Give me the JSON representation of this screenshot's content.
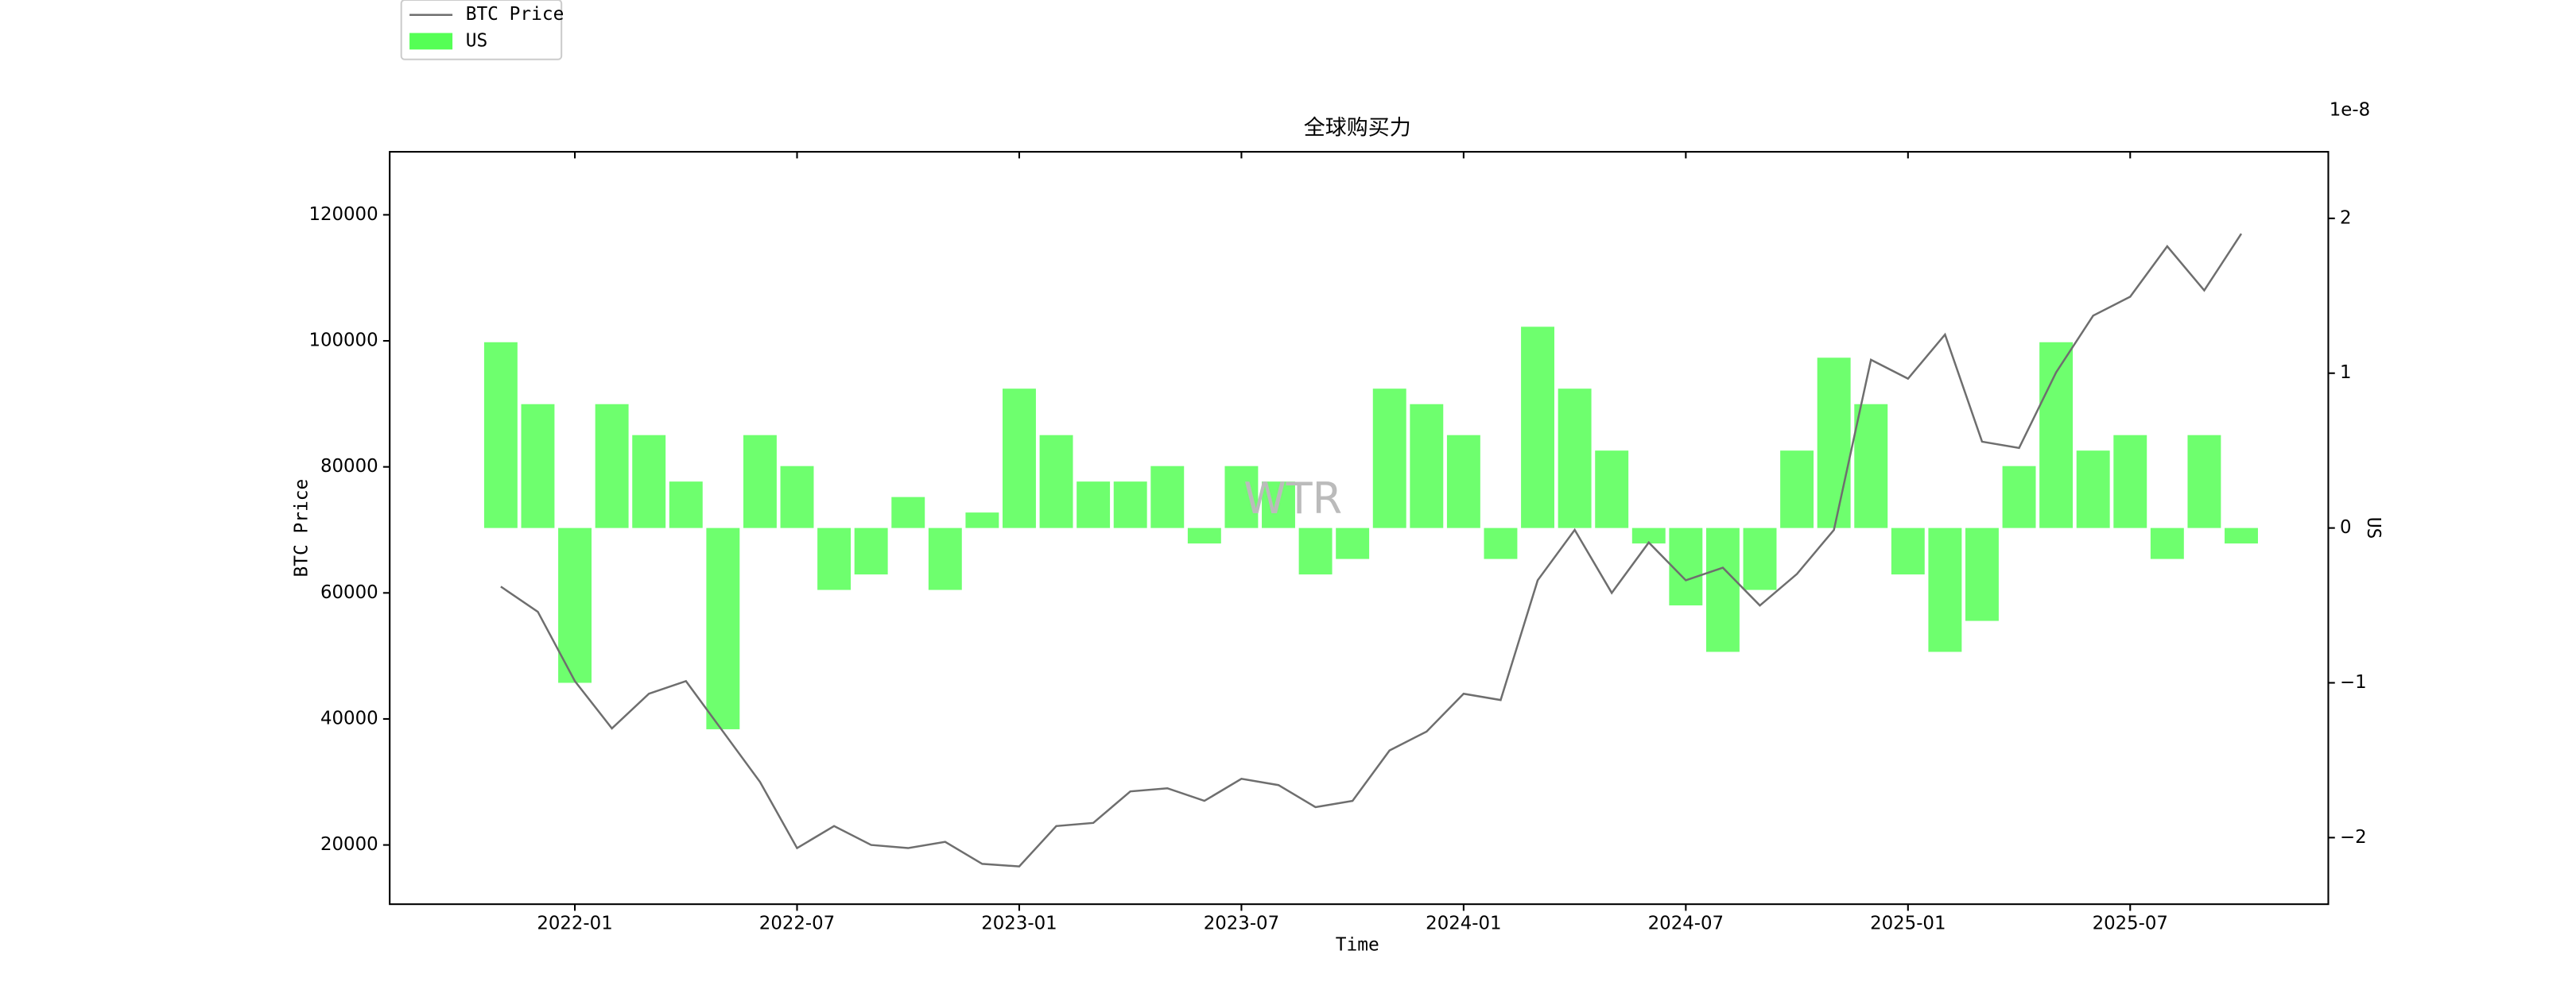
{
  "chart_data": {
    "type": "bar-line",
    "title": "全球购买力",
    "x_label": "Time",
    "y_label": "BTC Price",
    "y2_label": "US",
    "y2_offset_label": "1e-8",
    "watermark": "WTR",
    "legend_loc": "upper-left",
    "x": [
      "2021-11",
      "2021-12",
      "2022-01",
      "2022-02",
      "2022-03",
      "2022-04",
      "2022-05",
      "2022-06",
      "2022-07",
      "2022-08",
      "2022-09",
      "2022-10",
      "2022-11",
      "2022-12",
      "2023-01",
      "2023-02",
      "2023-03",
      "2023-04",
      "2023-05",
      "2023-06",
      "2023-07",
      "2023-08",
      "2023-09",
      "2023-10",
      "2023-11",
      "2023-12",
      "2024-01",
      "2024-02",
      "2024-03",
      "2024-04",
      "2024-05",
      "2024-06",
      "2024-07",
      "2024-08",
      "2024-09",
      "2024-10",
      "2024-11",
      "2024-12",
      "2025-01",
      "2025-02",
      "2025-03",
      "2025-04",
      "2025-05",
      "2025-06",
      "2025-07",
      "2025-08",
      "2025-09",
      "2025-10"
    ],
    "xlim": [
      "2021-08",
      "2025-12"
    ],
    "xticks": [
      "2022-01",
      "2022-07",
      "2023-01",
      "2023-07",
      "2024-01",
      "2024-07",
      "2025-01",
      "2025-07"
    ],
    "ylim": [
      10600,
      130000
    ],
    "yticks": [
      20000,
      40000,
      60000,
      80000,
      100000,
      120000
    ],
    "y2lim": [
      -2.43,
      2.43
    ],
    "y2ticks": [
      {
        "value": -2,
        "label": "−2"
      },
      {
        "value": -1,
        "label": "−1"
      },
      0,
      1,
      2
    ],
    "series": [
      {
        "name": "BTC Price",
        "kind": "line",
        "color": "#6e6e6e",
        "values": [
          61000,
          57000,
          46000,
          38500,
          44000,
          46000,
          38000,
          30000,
          19500,
          23000,
          20000,
          19500,
          20500,
          17000,
          16600,
          23000,
          23500,
          28500,
          29000,
          27000,
          30500,
          29500,
          26000,
          27000,
          35000,
          38000,
          44000,
          43000,
          62000,
          70000,
          60000,
          68000,
          62000,
          64000,
          58000,
          63000,
          70000,
          97000,
          94000,
          101000,
          84000,
          83000,
          95000,
          104000,
          107000,
          115000,
          108000,
          117000
        ]
      },
      {
        "name": "US",
        "kind": "bar",
        "axis": "y2",
        "color": "#55ff55",
        "values": [
          1.2,
          0.8,
          -1.0,
          0.8,
          0.6,
          0.3,
          -1.3,
          0.6,
          0.4,
          -0.4,
          -0.3,
          0.2,
          -0.4,
          0.1,
          0.9,
          0.6,
          0.3,
          0.3,
          0.4,
          -0.1,
          0.4,
          0.3,
          -0.3,
          -0.2,
          0.9,
          0.8,
          0.6,
          -0.2,
          1.3,
          0.9,
          0.5,
          -0.1,
          -0.5,
          -0.8,
          -0.4,
          0.5,
          1.1,
          0.8,
          -0.3,
          -0.8,
          -0.6,
          0.4,
          1.2,
          0.5,
          0.6,
          -0.2,
          0.6,
          -0.1
        ]
      }
    ]
  }
}
